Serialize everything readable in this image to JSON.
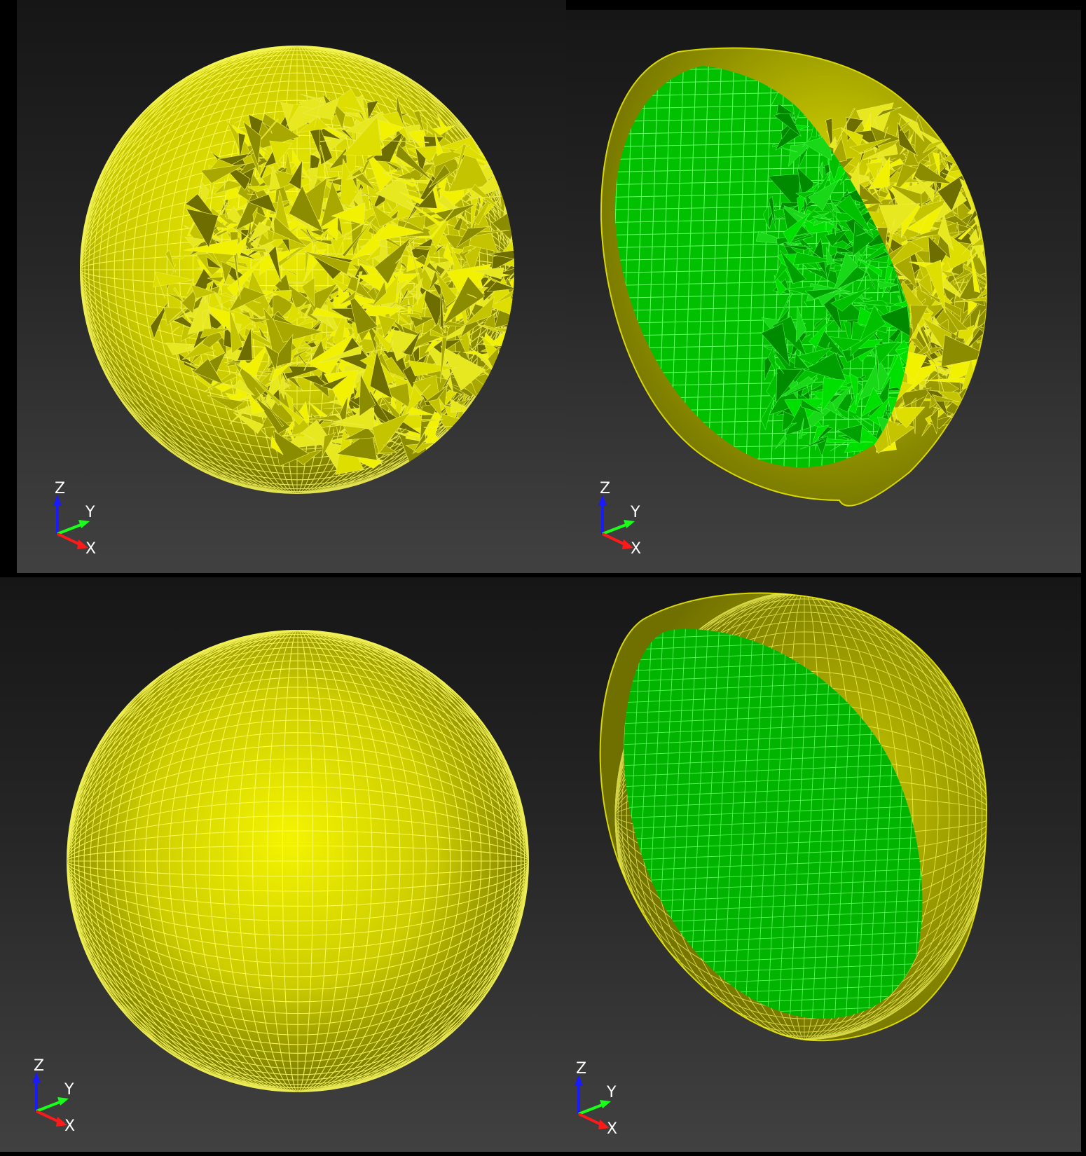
{
  "panels": [
    {
      "id": "top-left",
      "style": "faceted",
      "cut": false
    },
    {
      "id": "top-right",
      "style": "faceted",
      "cut": true
    },
    {
      "id": "bottom-left",
      "style": "smooth",
      "cut": false
    },
    {
      "id": "bottom-right",
      "style": "smooth",
      "cut": true
    }
  ],
  "axes": {
    "x": "X",
    "y": "Y",
    "z": "Z"
  },
  "colors": {
    "shell": "#e6e600",
    "shell_dark": "#6b6b00",
    "mesh_lines": "#ffff66",
    "core": "#00c800",
    "core_lines": "#66ff66",
    "axis_x": "#ff1a1a",
    "axis_y": "#1aff1a",
    "axis_z": "#1a1aff",
    "bg_top": "#161616",
    "bg_bottom": "#414141"
  }
}
